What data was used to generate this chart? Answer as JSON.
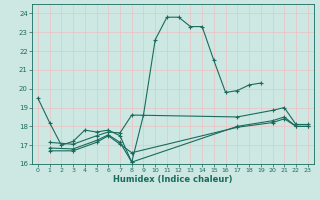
{
  "xlabel": "Humidex (Indice chaleur)",
  "background_color": "#cde8e2",
  "grid_color": "#e8c8c8",
  "line_color": "#1a6b5e",
  "xlim": [
    -0.5,
    23.5
  ],
  "ylim": [
    16,
    24.5
  ],
  "yticks": [
    16,
    17,
    18,
    19,
    20,
    21,
    22,
    23,
    24
  ],
  "xticks": [
    0,
    1,
    2,
    3,
    4,
    5,
    6,
    7,
    8,
    9,
    10,
    11,
    12,
    13,
    14,
    15,
    16,
    17,
    18,
    19,
    20,
    21,
    22,
    23
  ],
  "line1_x": [
    0,
    1,
    2,
    3,
    4,
    5,
    6,
    7,
    8,
    9,
    10,
    11,
    12,
    13,
    14,
    15,
    16,
    17,
    18,
    19
  ],
  "line1_y": [
    19.5,
    18.2,
    17.0,
    17.2,
    17.8,
    17.7,
    17.8,
    17.5,
    16.1,
    18.6,
    22.6,
    23.8,
    23.8,
    23.3,
    23.3,
    21.5,
    19.8,
    19.9,
    20.2,
    20.3
  ],
  "line2_x": [
    1,
    3,
    5,
    6,
    7,
    8,
    17,
    20,
    21,
    22,
    23
  ],
  "line2_y": [
    17.15,
    17.05,
    17.5,
    17.7,
    17.65,
    18.6,
    18.5,
    18.85,
    19.0,
    18.1,
    18.1
  ],
  "line3_x": [
    1,
    3,
    5,
    6,
    7,
    8,
    17,
    20,
    21,
    22,
    23
  ],
  "line3_y": [
    16.85,
    16.8,
    17.25,
    17.55,
    17.15,
    16.1,
    18.0,
    18.3,
    18.5,
    18.0,
    18.0
  ],
  "line4_x": [
    1,
    3,
    5,
    6,
    7,
    8,
    17,
    20,
    21,
    22,
    23
  ],
  "line4_y": [
    16.7,
    16.7,
    17.15,
    17.5,
    17.05,
    16.6,
    17.95,
    18.2,
    18.4,
    18.0,
    18.0
  ]
}
